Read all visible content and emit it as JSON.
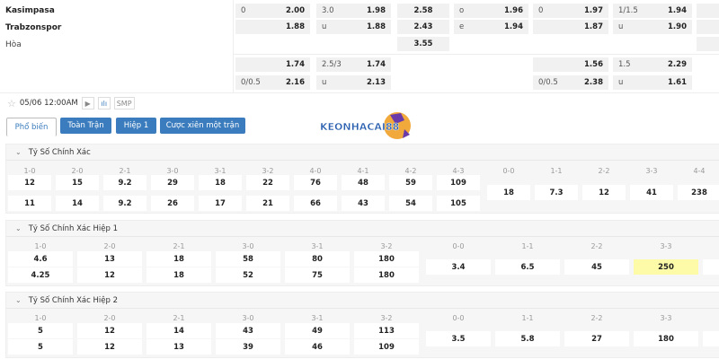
{
  "match": {
    "home": "Kasimpasa",
    "away": "Trabzonspor",
    "draw": "Hòa",
    "datetime": "05/06 12:00AM",
    "smp": "SMP"
  },
  "top_odds": [
    [
      [
        "0",
        "2.00"
      ],
      [
        "",
        "1.88"
      ],
      null,
      [
        "",
        "1.74"
      ],
      [
        "0/0.5",
        "2.16"
      ]
    ],
    [
      [
        "3.0",
        "1.98"
      ],
      [
        "u",
        "1.88"
      ],
      null,
      [
        "2.5/3",
        "1.74"
      ],
      [
        "u",
        "2.13"
      ]
    ],
    [
      [
        "",
        "2.58"
      ],
      [
        "",
        "2.43"
      ],
      [
        "",
        "3.55"
      ],
      null,
      null
    ],
    [
      [
        "o",
        "1.96"
      ],
      [
        "e",
        "1.94"
      ],
      null,
      null,
      null
    ],
    [
      [
        "0",
        "1.97"
      ],
      [
        "",
        "1.87"
      ],
      null,
      [
        "",
        "1.56"
      ],
      [
        "0/0.5",
        "2.38"
      ]
    ],
    [
      [
        "1/1.5",
        "1.94"
      ],
      [
        "u",
        "1.90"
      ],
      null,
      [
        "1.5",
        "2.29"
      ],
      [
        "u",
        "1.61"
      ]
    ]
  ],
  "tabs": [
    {
      "label": "Phổ biến",
      "active": true
    },
    {
      "label": "Toàn Trận"
    },
    {
      "label": "Hiệp 1"
    },
    {
      "label": "Cược xiên một trận"
    }
  ],
  "logo": {
    "text": "KEONHACAI88"
  },
  "sections": [
    {
      "title": "Tỷ Số Chính Xác",
      "scores": [
        "1-0",
        "2-0",
        "2-1",
        "3-0",
        "3-1",
        "3-2",
        "4-0",
        "4-1",
        "4-2",
        "4-3"
      ],
      "home": [
        "12",
        "15",
        "9.2",
        "29",
        "18",
        "22",
        "76",
        "48",
        "59",
        "109"
      ],
      "away": [
        "11",
        "14",
        "9.2",
        "26",
        "17",
        "21",
        "66",
        "43",
        "54",
        "105"
      ],
      "draw_scores": [
        "0-0",
        "1-1",
        "2-2",
        "3-3",
        "4-4"
      ],
      "draws": [
        "18",
        "7.3",
        "12",
        "41",
        "238"
      ],
      "highlight": -1
    },
    {
      "title": "Tỷ Số Chính Xác Hiệp 1",
      "scores": [
        "1-0",
        "2-0",
        "2-1",
        "3-0",
        "3-1",
        "3-2"
      ],
      "home": [
        "4.6",
        "13",
        "18",
        "58",
        "80",
        "180"
      ],
      "away": [
        "4.25",
        "12",
        "18",
        "52",
        "75",
        "180"
      ],
      "draw_scores": [
        "0-0",
        "1-1",
        "2-2",
        "3-3"
      ],
      "draws": [
        "3.4",
        "6.5",
        "45",
        "250"
      ],
      "highlight": 3,
      "highlight_color": "#fdfaa8"
    },
    {
      "title": "Tỷ Số Chính Xác Hiệp 2",
      "scores": [
        "1-0",
        "2-0",
        "2-1",
        "3-0",
        "3-1",
        "3-2"
      ],
      "home": [
        "5",
        "12",
        "14",
        "43",
        "49",
        "113"
      ],
      "away": [
        "5",
        "12",
        "13",
        "39",
        "46",
        "109"
      ],
      "draw_scores": [
        "0-0",
        "1-1",
        "2-2",
        "3-3"
      ],
      "draws": [
        "3.5",
        "5.8",
        "27",
        "180"
      ],
      "highlight": -1
    }
  ],
  "colors": {
    "accent": "#3a7cbd",
    "cell_bg": "#f1f1f1"
  }
}
